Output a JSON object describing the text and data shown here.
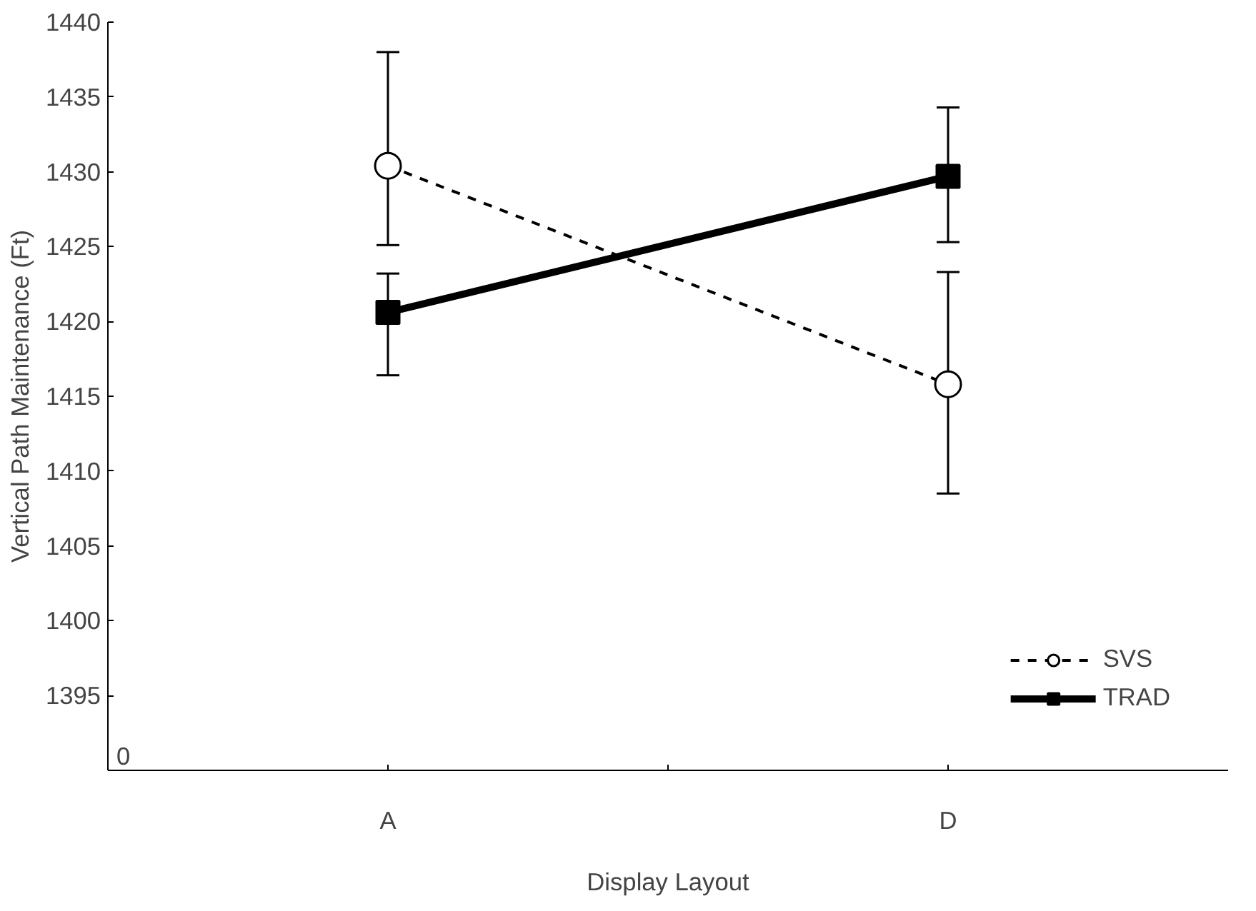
{
  "chart_data": {
    "type": "line",
    "xlabel": "Display Layout",
    "ylabel": "Vertical Path Maintenance (Ft)",
    "categories": [
      "A",
      "D"
    ],
    "ylim": [
      1390,
      1440
    ],
    "annotations": [
      "0"
    ],
    "yticks": [
      1395,
      1400,
      1405,
      1410,
      1415,
      1420,
      1425,
      1430,
      1435,
      1440
    ],
    "series": [
      {
        "name": "SVS",
        "color": "#000000",
        "values": [
          1430.4,
          1415.8
        ],
        "errors": [
          [
            1425.1,
            1438.0
          ],
          [
            1408.5,
            1423.3
          ]
        ],
        "marker": "circle",
        "line_style": "dashed"
      },
      {
        "name": "TRAD",
        "color": "#000000",
        "values": [
          1420.6,
          1429.7
        ],
        "errors": [
          [
            1416.4,
            1423.2
          ],
          [
            1425.3,
            1434.3
          ]
        ],
        "marker": "square",
        "line_style": "solid"
      }
    ],
    "grid": false,
    "legend": "bottom right"
  }
}
